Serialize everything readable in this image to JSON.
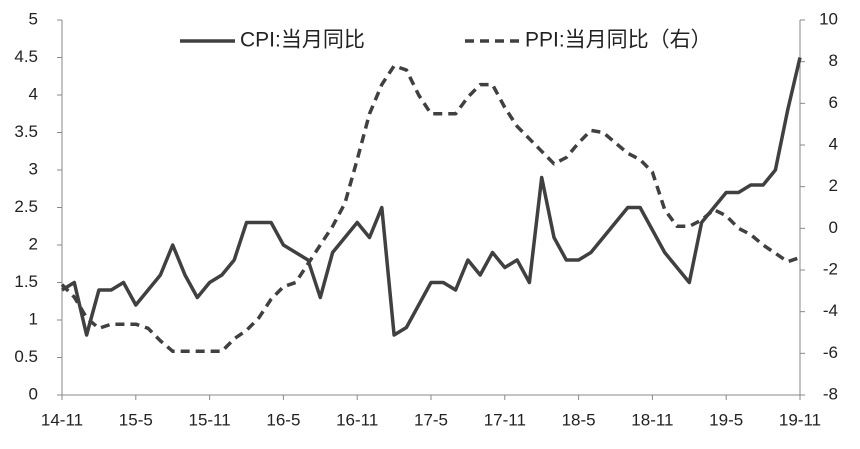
{
  "chart_data": {
    "type": "line",
    "categories": [
      "14-11",
      null,
      null,
      null,
      null,
      null,
      "15-5",
      null,
      null,
      null,
      null,
      null,
      "15-11",
      null,
      null,
      null,
      null,
      null,
      "16-5",
      null,
      null,
      null,
      null,
      null,
      "16-11",
      null,
      null,
      null,
      null,
      null,
      "17-5",
      null,
      null,
      null,
      null,
      null,
      "17-11",
      null,
      null,
      null,
      null,
      null,
      "18-5",
      null,
      null,
      null,
      null,
      null,
      "18-11",
      null,
      null,
      null,
      null,
      null,
      "19-5",
      null,
      null,
      null,
      null,
      null,
      "19-11"
    ],
    "series": [
      {
        "name": "CPI:当月同比",
        "color": "#404040",
        "dash": false,
        "values": [
          1.4,
          1.5,
          0.8,
          1.4,
          1.4,
          1.5,
          1.2,
          1.4,
          1.6,
          2.0,
          1.6,
          1.3,
          1.5,
          1.6,
          1.8,
          2.3,
          2.3,
          2.3,
          2.0,
          1.9,
          1.8,
          1.3,
          1.9,
          2.1,
          2.3,
          2.1,
          2.5,
          0.8,
          0.9,
          1.2,
          1.5,
          1.5,
          1.4,
          1.8,
          1.6,
          1.9,
          1.7,
          1.8,
          1.5,
          2.9,
          2.1,
          1.8,
          1.8,
          1.9,
          2.1,
          2.3,
          2.5,
          2.5,
          2.2,
          1.9,
          1.7,
          1.5,
          2.3,
          2.5,
          2.7,
          2.7,
          2.8,
          2.8,
          3.0,
          3.8,
          4.5
        ]
      },
      {
        "name": "PPI:当月同比（右）",
        "color": "#404040",
        "dash": true,
        "axis": "y2",
        "values": [
          -2.7,
          -3.3,
          -4.3,
          -4.8,
          -4.6,
          -4.6,
          -4.6,
          -4.8,
          -5.4,
          -5.9,
          -5.9,
          -5.9,
          -5.9,
          -5.9,
          -5.3,
          -4.9,
          -4.3,
          -3.4,
          -2.8,
          -2.6,
          -1.7,
          -0.8,
          0.1,
          1.2,
          3.3,
          5.5,
          6.9,
          7.8,
          7.6,
          6.4,
          5.5,
          5.5,
          5.5,
          6.3,
          6.9,
          6.9,
          5.8,
          4.9,
          4.3,
          3.7,
          3.1,
          3.4,
          4.1,
          4.7,
          4.6,
          4.1,
          3.6,
          3.3,
          2.7,
          0.9,
          0.1,
          0.1,
          0.4,
          0.9,
          0.6,
          0.0,
          -0.3,
          -0.8,
          -1.2,
          -1.6,
          -1.4
        ]
      }
    ],
    "ylim": [
      0,
      5
    ],
    "yticks": [
      0,
      0.5,
      1,
      1.5,
      2,
      2.5,
      3,
      3.5,
      4,
      4.5,
      5
    ],
    "y2lim": [
      -8,
      10
    ],
    "y2ticks": [
      -8,
      -6,
      -4,
      -2,
      0,
      2,
      4,
      6,
      8,
      10
    ],
    "grid": false,
    "legend": "top"
  }
}
